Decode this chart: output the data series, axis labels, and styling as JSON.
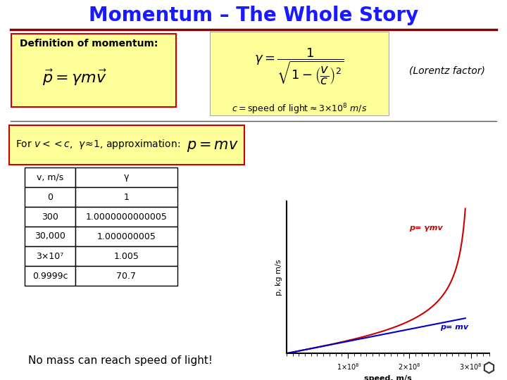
{
  "title": "Momentum – The Whole Story",
  "title_color": "#1a1aff",
  "title_fontsize": 20,
  "bg_color": "#ffffff",
  "separator_color": "#8b0000",
  "def_box_color": "#ffff99",
  "def_box_border": "#cc0000",
  "lorentz_box_color": "#ffff99",
  "approx_box_color": "#ffff99",
  "approx_box_border": "#cc0000",
  "table_data": [
    [
      "v, m/s",
      "γ"
    ],
    [
      "0",
      "1"
    ],
    [
      "300",
      "1.0000000000005"
    ],
    [
      "30,000",
      "1.000000005"
    ],
    [
      "3×10⁷",
      "1.005"
    ],
    [
      "0.9999c",
      "70.7"
    ]
  ],
  "footer_text": "No mass can reach speed of light!",
  "lorentz_label": "(Lorentz factor)",
  "plot_xlabel": "speed, m/s",
  "plot_ylabel": "p, kg m/s",
  "plot_label1": "p= γmv",
  "plot_label2": "p= mv",
  "plot_color1": "#cc0000",
  "plot_color2": "#0000cc",
  "sep2_color": "#555555"
}
